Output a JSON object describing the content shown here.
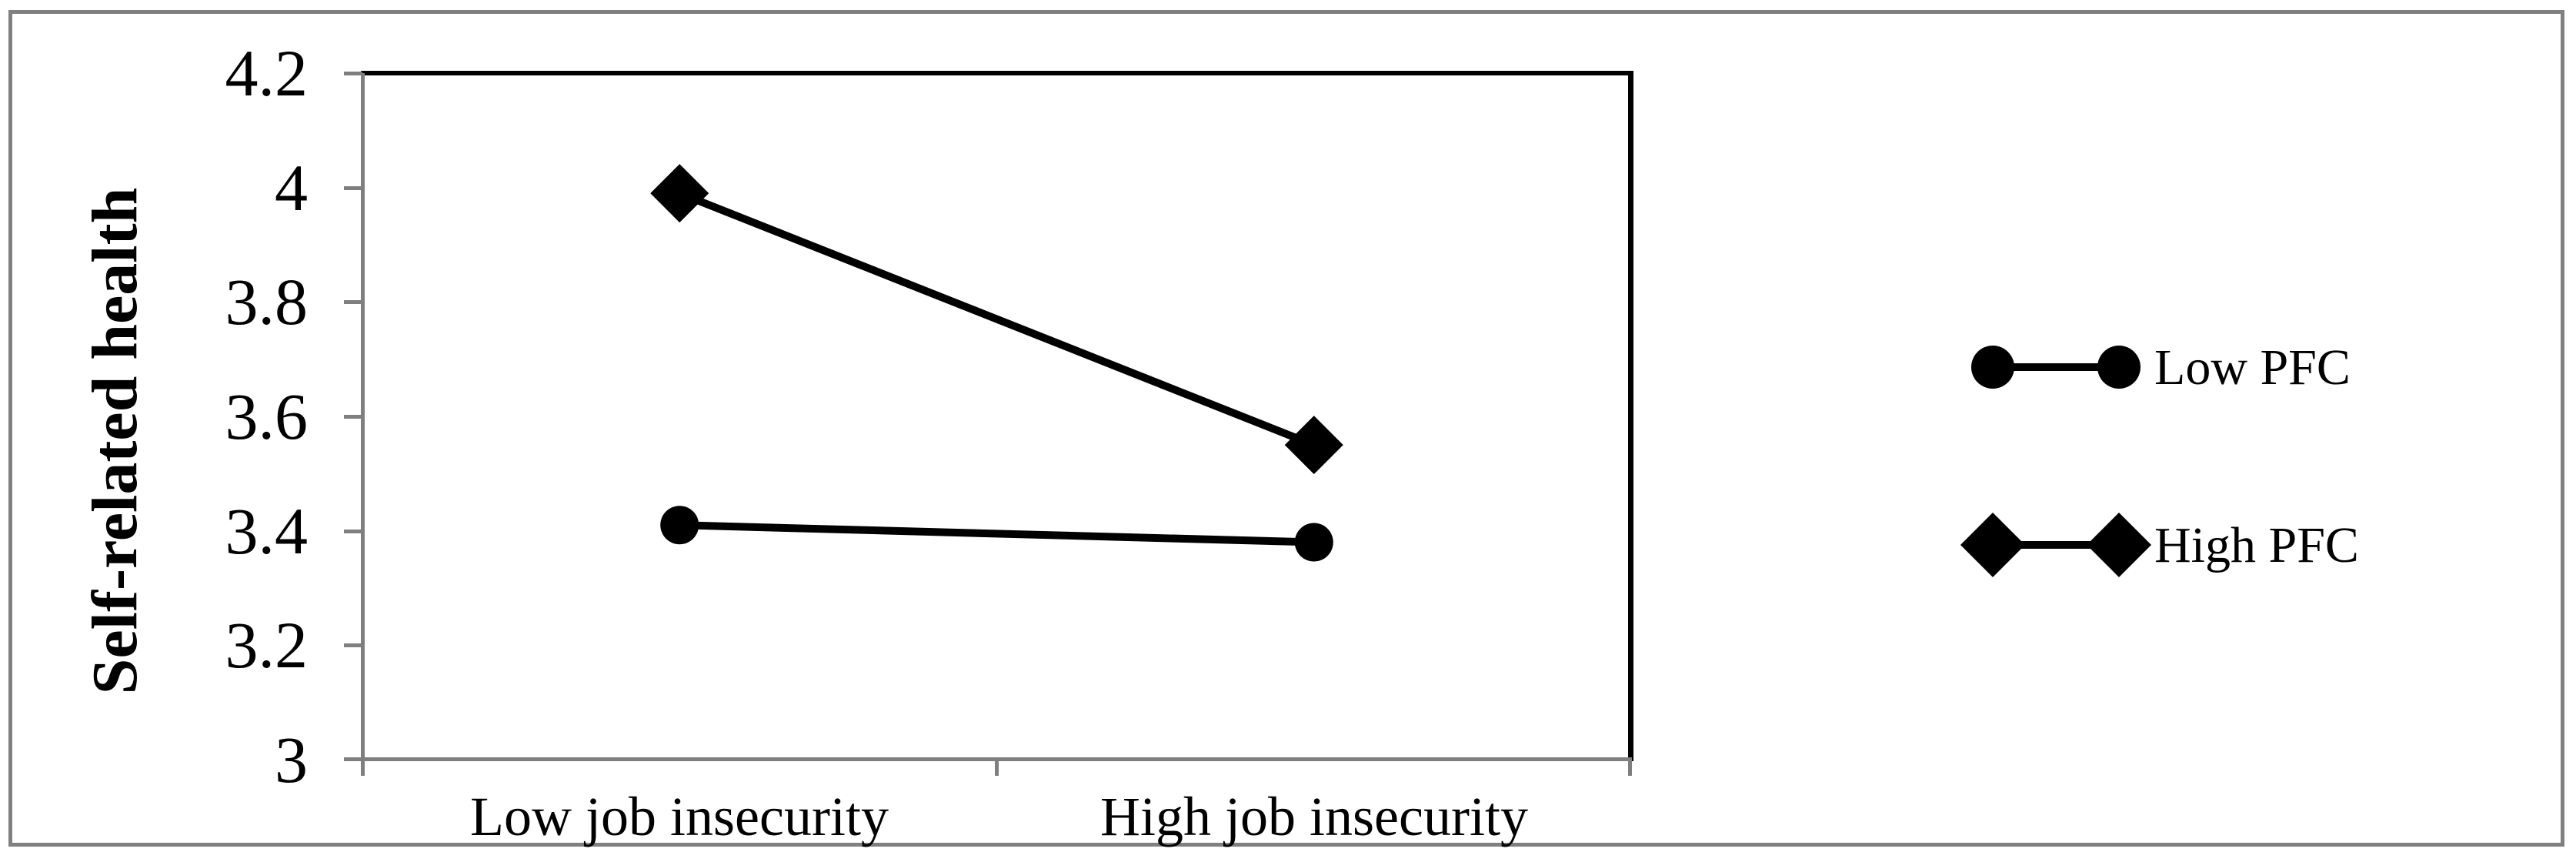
{
  "figure": {
    "background": "#ffffff",
    "border_color": "#808080",
    "axis_color": "#7f7f7f",
    "series_color": "#000000"
  },
  "chart_data": {
    "type": "line",
    "title": "",
    "xlabel": "",
    "ylabel": "Self-related health",
    "categories": [
      "Low job insecurity",
      "High job insecurity"
    ],
    "series": [
      {
        "name": "Low PFC",
        "marker": "circle",
        "values": [
          3.41,
          3.38
        ]
      },
      {
        "name": "High PFC",
        "marker": "diamond",
        "values": [
          3.99,
          3.55
        ]
      }
    ],
    "ylim": [
      3.0,
      4.2
    ],
    "ytick_step": 0.2,
    "ytick_labels": [
      "4.2",
      "4",
      "3.8",
      "3.6",
      "3.4",
      "3.2",
      "3"
    ],
    "grid": false,
    "legend_position": "right-outside"
  }
}
